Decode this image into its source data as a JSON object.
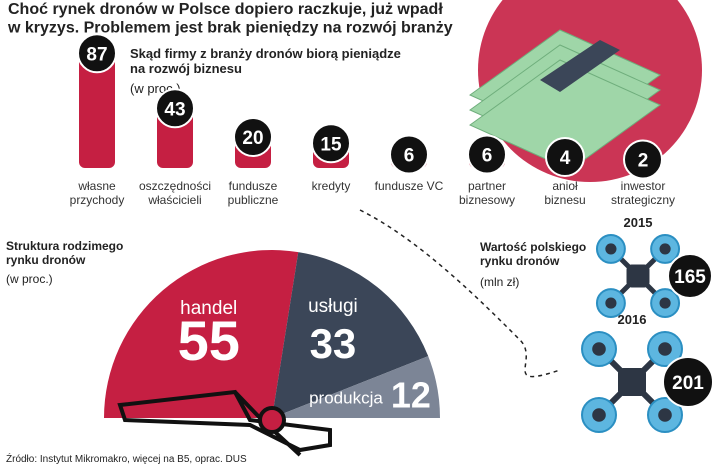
{
  "title": "Choć rynek dronów w Polsce dopiero raczkuje, już wpadł\nw kryzys. Problemem jest brak pieniędzy na rozwój branży",
  "chart_data": [
    {
      "type": "bar",
      "title": "Skąd firmy z branży dronów biorą pieniądze\nna rozwój biznesu",
      "subtitle": "(w proc.)",
      "categories": [
        "własne\nprzychody",
        "oszczędności\nwłaścicieli",
        "fundusze\npubliczne",
        "kredyty",
        "fundusze VC",
        "partner\nbiznesowy",
        "anioł\nbiznesu",
        "inwestor\nstrategiczny"
      ],
      "values": [
        87,
        43,
        20,
        15,
        6,
        6,
        4,
        2
      ],
      "color": "#c51f42"
    },
    {
      "type": "fan",
      "title": "Struktura rodzimego\nrynku dronów",
      "subtitle": "(w proc.)",
      "categories": [
        "handel",
        "usługi",
        "produkcja"
      ],
      "values": [
        55,
        33,
        12
      ],
      "colors": [
        "#c51f42",
        "#3b4658",
        "#7c8596"
      ]
    },
    {
      "type": "drone",
      "title": "Wartość polskiego\nrynku dronów",
      "subtitle": "(mln zł)",
      "categories": [
        "2015",
        "2016"
      ],
      "values": [
        165,
        201
      ]
    }
  ],
  "source": "Źródło: Instytut Mikromakro, więcej na B5, oprac. DUS"
}
